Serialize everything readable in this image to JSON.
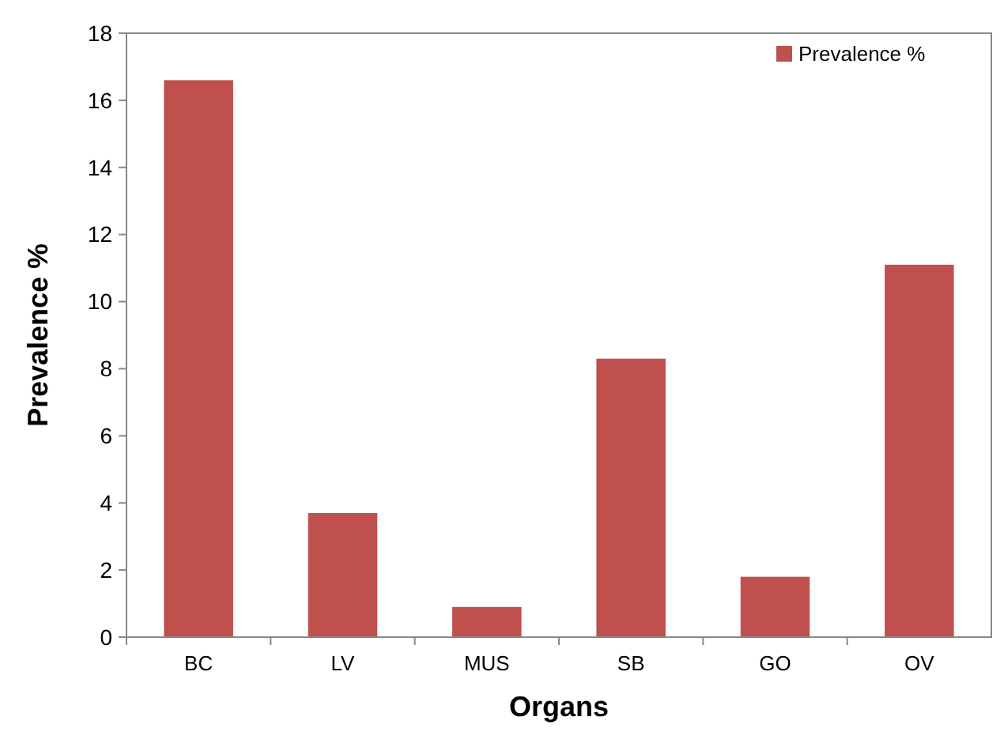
{
  "chart_data": {
    "type": "bar",
    "xlabel": "Organs",
    "ylabel": "Prevalence %",
    "categories": [
      "BC",
      "LV",
      "MUS",
      "SB",
      "GO",
      "OV"
    ],
    "series": [
      {
        "name": "Prevalence %",
        "color": "#c0504d",
        "values": [
          16.6,
          3.7,
          0.9,
          8.3,
          1.8,
          11.1
        ]
      }
    ],
    "ylim": [
      0,
      18
    ],
    "yticks": [
      0,
      2,
      4,
      6,
      8,
      10,
      12,
      14,
      16,
      18
    ],
    "grid": false,
    "legend": "top right"
  }
}
